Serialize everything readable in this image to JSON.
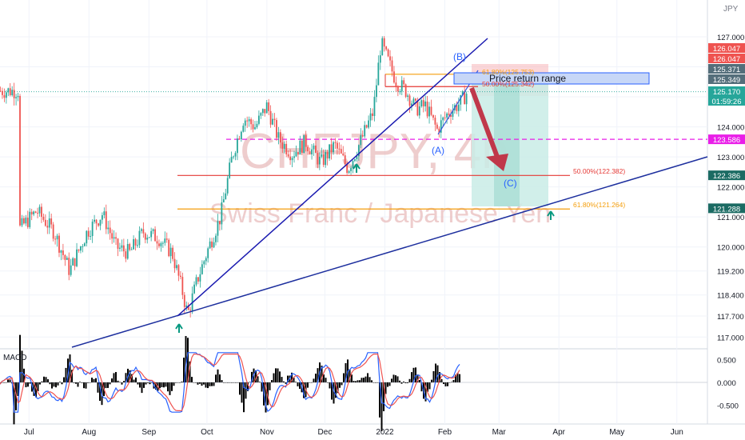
{
  "chart_data": [
    {
      "type": "candlestick",
      "symbol_watermark": "CHFJPY, 4h",
      "symbol_name": "Swiss Franc / Japanese Yen",
      "currency_label": "JPY",
      "x_ticks": [
        "Jul",
        "Aug",
        "Sep",
        "Oct",
        "Nov",
        "Dec",
        "2022",
        "Feb",
        "Mar",
        "Apr",
        "May",
        "Jun"
      ],
      "y_ticks": [
        117.0,
        117.7,
        118.4,
        119.2,
        120.0,
        121.0,
        122.0,
        123.0,
        124.0,
        125.0,
        126.0,
        127.0
      ],
      "y_tick_labels": [
        "117.000",
        "117.700",
        "118.400",
        "119.200",
        "120.000",
        "121.000",
        "122.000",
        "123.000",
        "124.000",
        "125.000",
        "126.000",
        "127.000"
      ],
      "ylim": [
        116.5,
        127.5
      ],
      "price_path": [
        [
          "2021-06-26",
          120.6
        ],
        [
          "2021-07-05",
          121.2
        ],
        [
          "2021-07-14",
          120.5
        ],
        [
          "2021-07-22",
          119.2
        ],
        [
          "2021-07-31",
          120.5
        ],
        [
          "2021-08-08",
          121.1
        ],
        [
          "2021-08-15",
          120.0
        ],
        [
          "2021-08-22",
          119.8
        ],
        [
          "2021-08-29",
          120.5
        ],
        [
          "2021-09-06",
          120.3
        ],
        [
          "2021-09-13",
          119.8
        ],
        [
          "2021-09-18",
          118.6
        ],
        [
          "2021-09-21",
          117.75
        ],
        [
          "2021-09-26",
          118.9
        ],
        [
          "2021-10-02",
          120.0
        ],
        [
          "2021-10-08",
          121.0
        ],
        [
          "2021-10-14",
          123.0
        ],
        [
          "2021-10-20",
          124.3
        ],
        [
          "2021-10-26",
          124.0
        ],
        [
          "2021-11-01",
          124.7
        ],
        [
          "2021-11-07",
          123.6
        ],
        [
          "2021-11-14",
          123.1
        ],
        [
          "2021-11-21",
          123.5
        ],
        [
          "2021-11-29",
          122.8
        ],
        [
          "2021-12-06",
          123.4
        ],
        [
          "2021-12-13",
          122.6
        ],
        [
          "2021-12-20",
          123.6
        ],
        [
          "2021-12-26",
          124.5
        ],
        [
          "2021-12-30",
          126.8
        ],
        [
          "2022-01-02",
          126.3
        ],
        [
          "2022-01-07",
          125.5
        ],
        [
          "2022-01-12",
          125.2
        ],
        [
          "2022-01-17",
          124.6
        ],
        [
          "2022-01-22",
          124.7
        ],
        [
          "2022-01-28",
          123.9
        ],
        [
          "2022-02-03",
          124.5
        ],
        [
          "2022-02-09",
          124.8
        ],
        [
          "2022-02-13",
          125.2
        ]
      ],
      "price_labels": [
        {
          "value": 126.047,
          "text": "126.047",
          "color": "#ef5350"
        },
        {
          "value": 125.371,
          "text": "125.371",
          "color": "#546e7a"
        },
        {
          "value": 125.17,
          "text": "125.170",
          "color": "#26a69a",
          "extra": "01:59:26"
        },
        {
          "value": 123.586,
          "text": "123.586",
          "color": "#e91ee8"
        },
        {
          "value": 122.386,
          "text": "122.386",
          "color": "#1b6b63"
        },
        {
          "value": 121.288,
          "text": "121.288",
          "color": "#1b6b63"
        }
      ],
      "price_labels_pair": [
        {
          "value": 126.047,
          "text": "126.047",
          "color": "#ef5350"
        },
        {
          "value": 125.349,
          "text": "125.349",
          "color": "#546e7a"
        }
      ],
      "annotations": {
        "fib_618_upper": "61.80%(125.753)",
        "fib_500_upper": "50.00%(125.342)",
        "fib_500_lower": "50.00%(122.382)",
        "fib_618_lower": "61.80%(121.264)",
        "wave_a": "(A)",
        "wave_b": "(B)",
        "wave_c": "(C)",
        "price_return_range": "Price return range"
      },
      "horizontal_levels": {
        "dashed_magenta": 123.586,
        "fib_500_lower": 122.382,
        "fib_618_lower": 121.264,
        "fib_618_upper": 125.753,
        "fib_500_upper": 125.342
      },
      "colors": {
        "up": "#26a69a",
        "down": "#ef5350",
        "trend": "#1d2f9e",
        "fib_red": "#e53935",
        "fib_orange": "#f59e0b"
      }
    },
    {
      "type": "line",
      "title": "MACD",
      "y_ticks": [
        0.5,
        0.0,
        -0.5
      ],
      "y_tick_labels": [
        "0.500",
        "0.000",
        "-0.500"
      ],
      "ylim": [
        -0.75,
        0.72
      ]
    }
  ]
}
